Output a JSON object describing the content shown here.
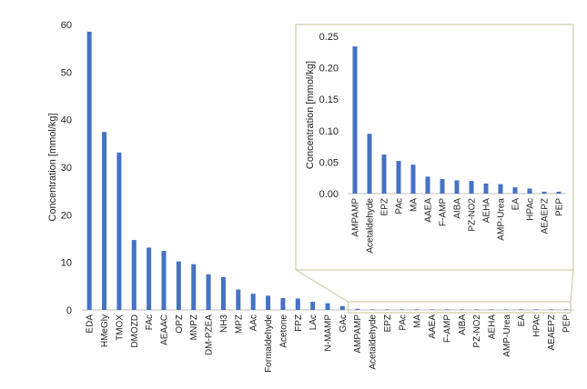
{
  "chart_data": [
    {
      "type": "bar",
      "ylabel": "Concentration [mmol/kg]",
      "ylim": [
        0,
        60
      ],
      "yticks": [
        0,
        10,
        20,
        30,
        40,
        50,
        60
      ],
      "categories": [
        "EDA",
        "HMeGly",
        "TMOX",
        "DMOZD",
        "FAc",
        "AEAAC",
        "OPZ",
        "MNPZ",
        "DM-PZEA",
        "NH3",
        "MPZ",
        "AAc",
        "Formaldehyde",
        "Acetone",
        "FPZ",
        "LAc",
        "N-MAMP",
        "GAc",
        "AMPAMP",
        "Acetaldehyde",
        "EPZ",
        "PAc",
        "MA",
        "AAEA",
        "F-AMP",
        "AIBA",
        "PZ-NO2",
        "AEHA",
        "AMP-Urea",
        "EA",
        "HPAc",
        "AEAEPZ",
        "PEP"
      ],
      "values": [
        58.5,
        37.4,
        33.1,
        14.7,
        13.1,
        12.4,
        10.2,
        9.6,
        7.5,
        6.9,
        4.3,
        3.4,
        3.0,
        2.5,
        2.4,
        1.7,
        1.4,
        0.8,
        0.234,
        0.095,
        0.062,
        0.052,
        0.046,
        0.027,
        0.023,
        0.021,
        0.02,
        0.016,
        0.015,
        0.01,
        0.008,
        0.003,
        0.003
      ],
      "bar_color": "#4472C4",
      "grid": false
    },
    {
      "type": "bar",
      "ylabel": "Concentration [mmol/kg]",
      "ylim": [
        0,
        0.25
      ],
      "yticks": [
        "0.00",
        "0.05",
        "0.10",
        "0.15",
        "0.20",
        "0.25"
      ],
      "categories": [
        "AMPAMP",
        "Acetaldehyde",
        "EPZ",
        "PAc",
        "MA",
        "AAEA",
        "F-AMP",
        "AIBA",
        "PZ-NO2",
        "AEHA",
        "AMP-Urea",
        "EA",
        "HPAc",
        "AEAEPZ",
        "PEP"
      ],
      "values": [
        0.234,
        0.095,
        0.062,
        0.052,
        0.046,
        0.027,
        0.023,
        0.021,
        0.02,
        0.016,
        0.015,
        0.01,
        0.008,
        0.003,
        0.003
      ],
      "bar_color": "#4472C4",
      "grid": false
    }
  ],
  "colors": {
    "bar": "#4472C4",
    "inset_border": "#C6C29A",
    "axis": "#BFBFBF"
  }
}
